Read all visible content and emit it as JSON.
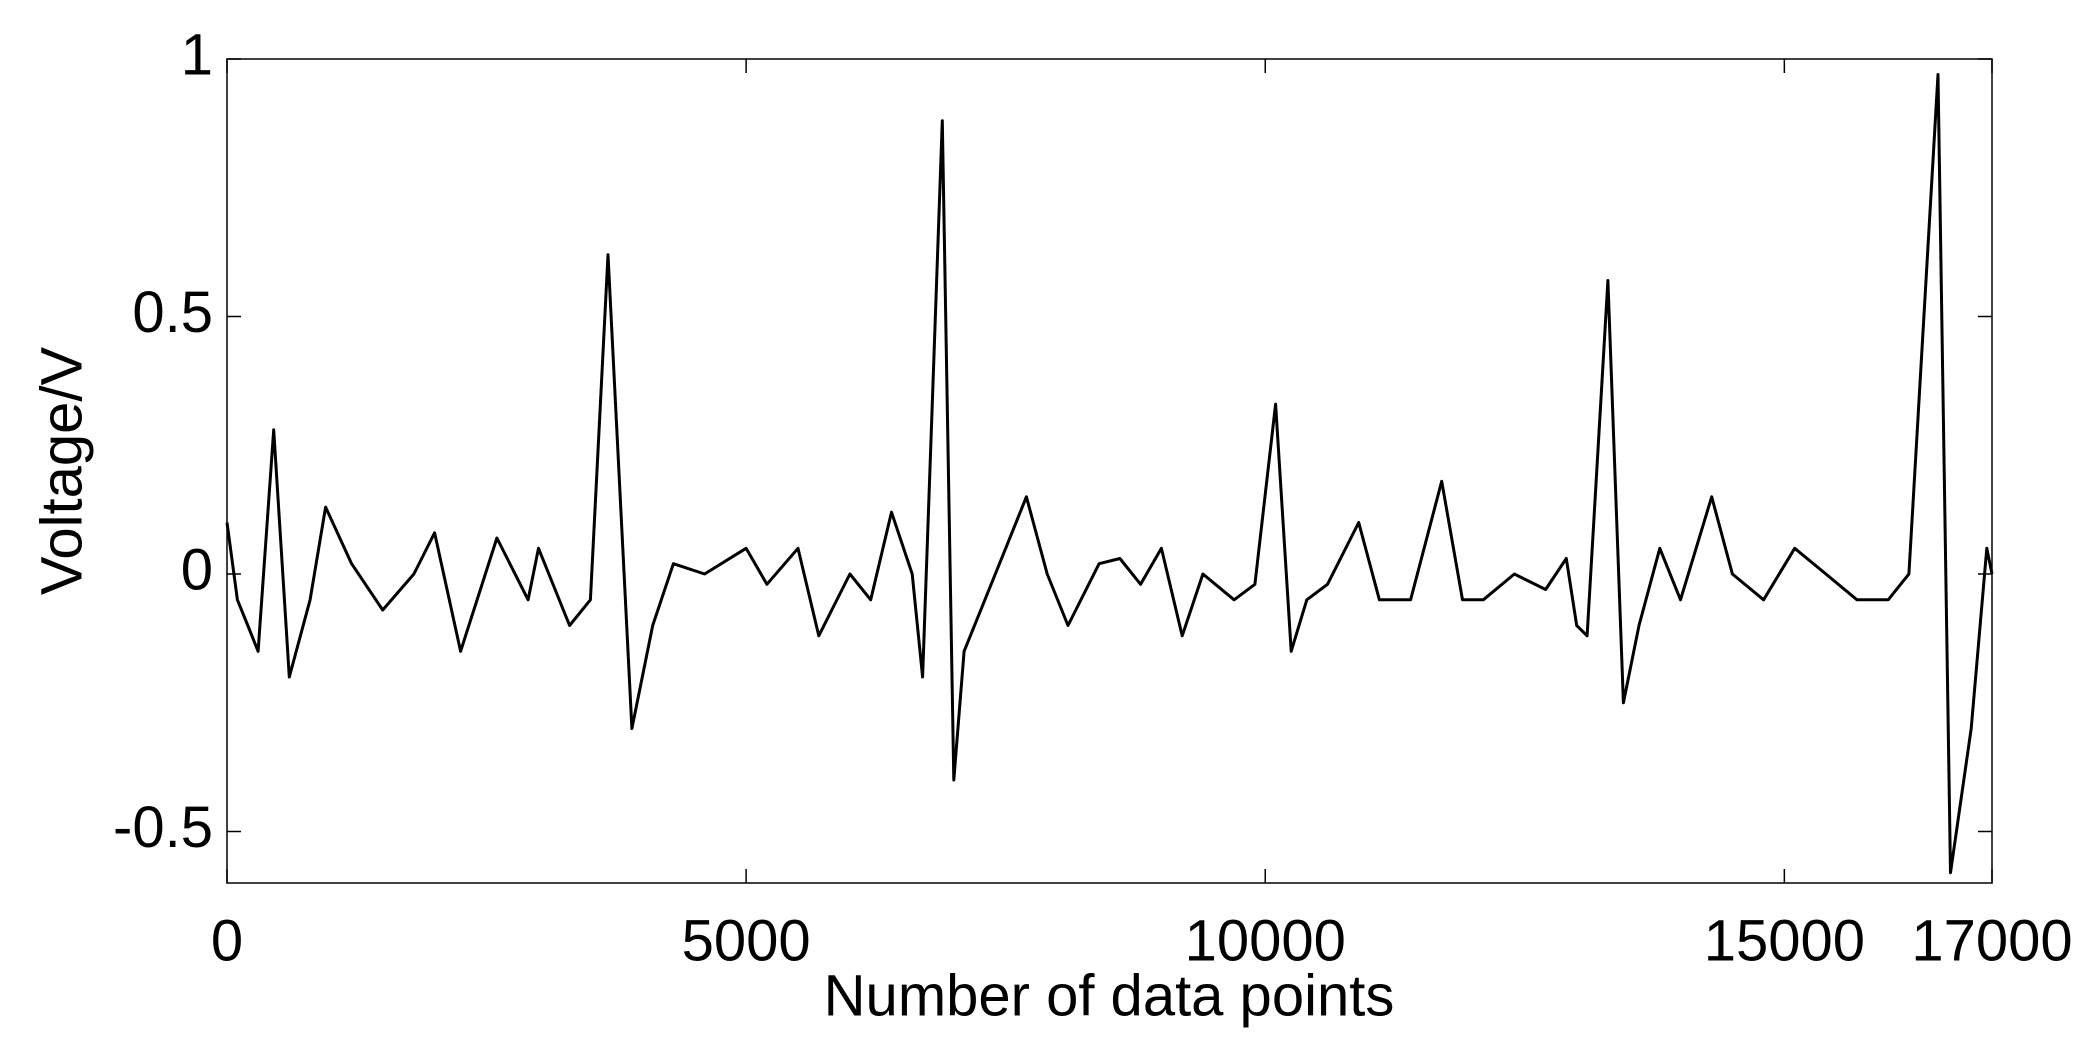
{
  "chart_data": {
    "type": "line",
    "xlabel": "Number of data points",
    "ylabel": "Voltage/V",
    "x": [
      0,
      100,
      200,
      300,
      450,
      600,
      800,
      950,
      1200,
      1500,
      1800,
      2000,
      2250,
      2600,
      2900,
      3000,
      3300,
      3500,
      3670,
      3800,
      3900,
      4100,
      4300,
      4600,
      5000,
      5200,
      5500,
      5700,
      6000,
      6200,
      6400,
      6600,
      6700,
      6890,
      7000,
      7100,
      7300,
      7500,
      7700,
      7900,
      8100,
      8400,
      8600,
      8800,
      9000,
      9200,
      9400,
      9700,
      9900,
      10100,
      10250,
      10400,
      10600,
      10900,
      11100,
      11400,
      11700,
      11900,
      12100,
      12400,
      12700,
      12900,
      13000,
      13100,
      13300,
      13450,
      13600,
      13800,
      14000,
      14300,
      14500,
      14800,
      15100,
      15400,
      15700,
      16000,
      16200,
      16480,
      16600,
      16800,
      16950,
      17000
    ],
    "values": [
      0.1,
      -0.05,
      -0.1,
      -0.15,
      0.28,
      -0.2,
      -0.05,
      0.13,
      0.02,
      -0.07,
      0.0,
      0.08,
      -0.15,
      0.07,
      -0.05,
      0.05,
      -0.1,
      -0.05,
      0.62,
      0.1,
      -0.3,
      -0.1,
      0.02,
      0.0,
      0.05,
      -0.02,
      0.05,
      -0.12,
      0.0,
      -0.05,
      0.12,
      0.0,
      -0.2,
      0.88,
      -0.4,
      -0.15,
      -0.05,
      0.05,
      0.15,
      0.0,
      -0.1,
      0.02,
      0.03,
      -0.02,
      0.05,
      -0.12,
      0.0,
      -0.05,
      -0.02,
      0.33,
      -0.15,
      -0.05,
      -0.02,
      0.1,
      -0.05,
      -0.05,
      0.18,
      -0.05,
      -0.05,
      0.0,
      -0.03,
      0.03,
      -0.1,
      -0.12,
      0.57,
      -0.25,
      -0.1,
      0.05,
      -0.05,
      0.15,
      0.0,
      -0.05,
      0.05,
      0.0,
      -0.05,
      -0.05,
      0.0,
      0.97,
      -0.58,
      -0.3,
      0.05,
      0.0
    ],
    "color": "#000000",
    "xlim": [
      0,
      17000
    ],
    "xticks": [
      0,
      5000,
      10000,
      15000,
      17000
    ],
    "ylim": [
      -0.6,
      1
    ],
    "yticks": [
      -0.5,
      0,
      0.5,
      1
    ],
    "grid": false
  }
}
